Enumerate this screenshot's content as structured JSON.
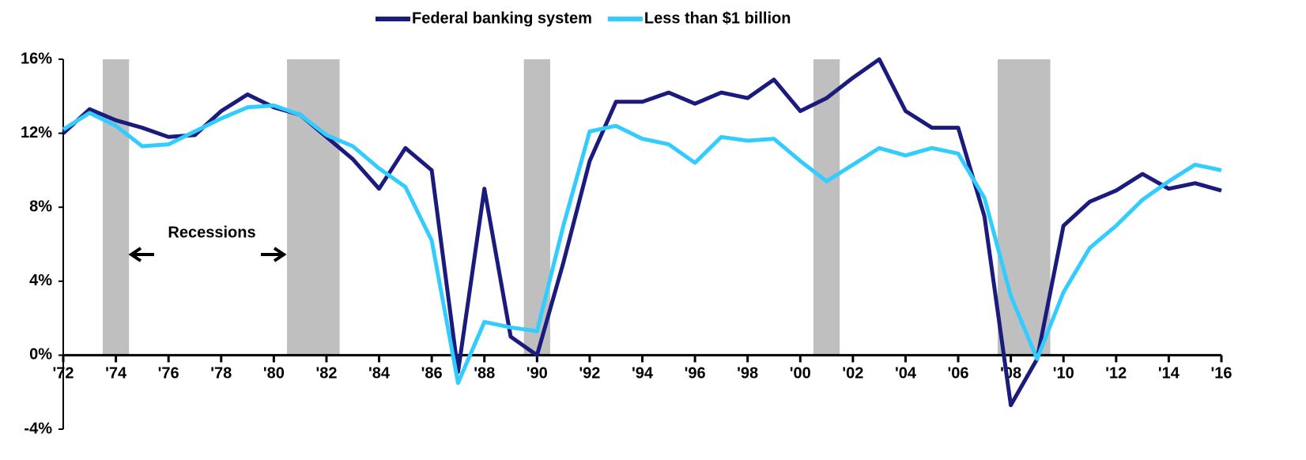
{
  "chart_data": {
    "type": "line",
    "legend": "top",
    "annotation": "Recessions",
    "x": [
      1972,
      1973,
      1974,
      1975,
      1976,
      1977,
      1978,
      1979,
      1980,
      1981,
      1982,
      1983,
      1984,
      1985,
      1986,
      1987,
      1988,
      1989,
      1990,
      1991,
      1992,
      1993,
      1994,
      1995,
      1996,
      1997,
      1998,
      1999,
      2000,
      2001,
      2002,
      2003,
      2004,
      2005,
      2006,
      2007,
      2008,
      2009,
      2010,
      2011,
      2012,
      2013,
      2014,
      2015,
      2016
    ],
    "series": [
      {
        "name": "Federal banking system",
        "color": "#1b1b7d",
        "values": [
          12.0,
          13.3,
          12.7,
          12.3,
          11.8,
          11.9,
          13.2,
          14.1,
          13.4,
          13.0,
          11.8,
          10.6,
          9.0,
          11.2,
          10.0,
          -0.9,
          9.0,
          1.0,
          0.0,
          5.0,
          10.5,
          13.7,
          13.7,
          14.2,
          13.6,
          14.2,
          13.9,
          14.9,
          13.2,
          13.9,
          15.0,
          16.0,
          13.2,
          12.3,
          12.3,
          7.5,
          -2.7,
          -0.2,
          7.0,
          8.3,
          8.9,
          9.8,
          9.0,
          9.3,
          8.9
        ]
      },
      {
        "name": "Less than $1 billion",
        "color": "#33ccff",
        "values": [
          12.2,
          13.1,
          12.4,
          11.3,
          11.4,
          12.1,
          12.8,
          13.4,
          13.5,
          13.0,
          11.9,
          11.3,
          10.1,
          9.1,
          6.2,
          -1.5,
          1.8,
          1.5,
          1.3,
          7.0,
          12.1,
          12.4,
          11.7,
          11.4,
          10.4,
          11.8,
          11.6,
          11.7,
          10.5,
          9.4,
          10.3,
          11.2,
          10.8,
          11.2,
          10.9,
          8.5,
          3.2,
          -0.2,
          3.4,
          5.8,
          7.0,
          8.4,
          9.4,
          10.3,
          10.0
        ]
      }
    ],
    "recessions": [
      [
        1973.5,
        1974.5
      ],
      [
        1980.5,
        1982.5
      ],
      [
        1989.5,
        1990.5
      ],
      [
        2000.5,
        2001.5
      ],
      [
        2007.5,
        2009.5
      ]
    ],
    "xlim": [
      1972,
      2016
    ],
    "xticks": [
      {
        "value": 1972,
        "label": "'72"
      },
      {
        "value": 1974,
        "label": "'74"
      },
      {
        "value": 1976,
        "label": "'76"
      },
      {
        "value": 1978,
        "label": "'78"
      },
      {
        "value": 1980,
        "label": "'80"
      },
      {
        "value": 1982,
        "label": "'82"
      },
      {
        "value": 1984,
        "label": "'84"
      },
      {
        "value": 1986,
        "label": "'86"
      },
      {
        "value": 1988,
        "label": "'88"
      },
      {
        "value": 1990,
        "label": "'90"
      },
      {
        "value": 1992,
        "label": "'92"
      },
      {
        "value": 1994,
        "label": "'94"
      },
      {
        "value": 1996,
        "label": "'96"
      },
      {
        "value": 1998,
        "label": "'98"
      },
      {
        "value": 2000,
        "label": "'00"
      },
      {
        "value": 2002,
        "label": "'02"
      },
      {
        "value": 2004,
        "label": "'04"
      },
      {
        "value": 2006,
        "label": "'06"
      },
      {
        "value": 2008,
        "label": "'08"
      },
      {
        "value": 2010,
        "label": "'10"
      },
      {
        "value": 2012,
        "label": "'12"
      },
      {
        "value": 2014,
        "label": "'14"
      },
      {
        "value": 2016,
        "label": "'16"
      }
    ],
    "ylim": [
      -4,
      16
    ],
    "yticks": [
      {
        "value": -4,
        "label": "-4%"
      },
      {
        "value": 0,
        "label": "0%"
      },
      {
        "value": 4,
        "label": "4%"
      },
      {
        "value": 8,
        "label": "8%"
      },
      {
        "value": 12,
        "label": "12%"
      },
      {
        "value": 16,
        "label": "16%"
      }
    ]
  }
}
